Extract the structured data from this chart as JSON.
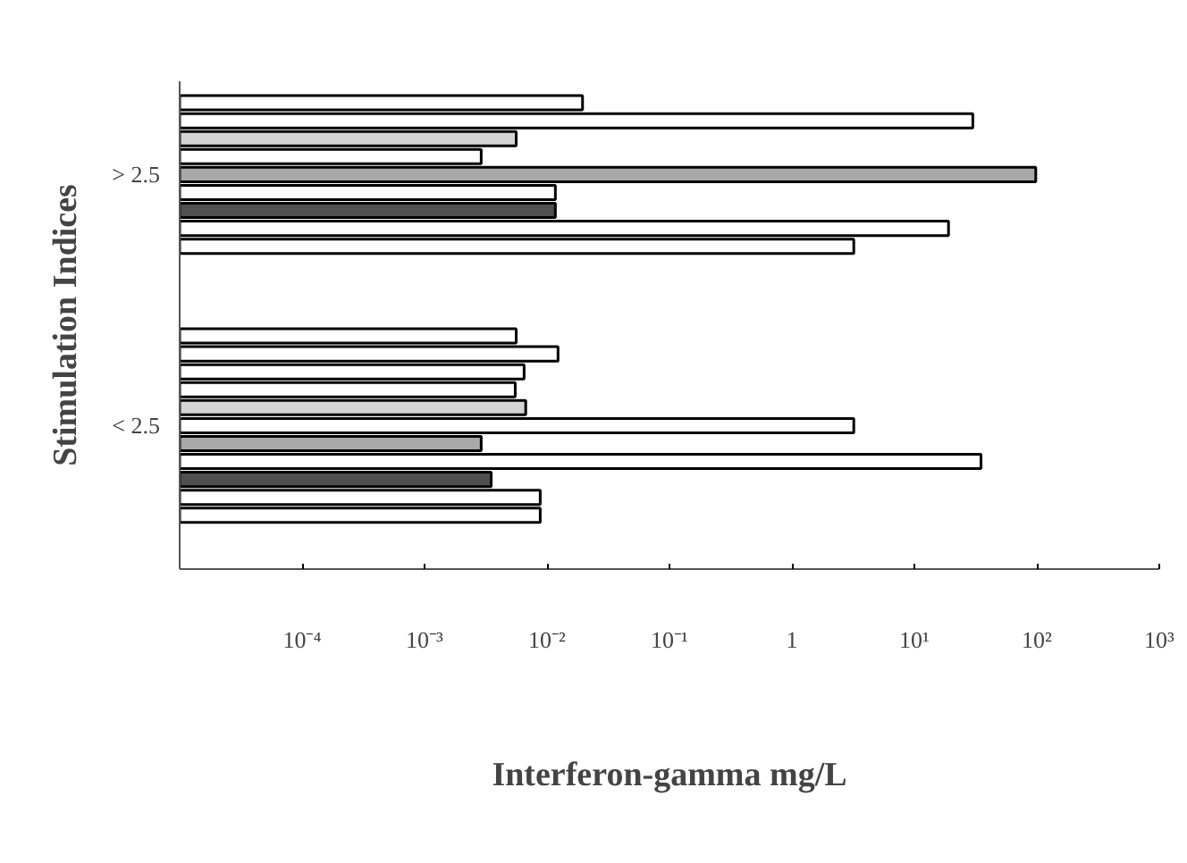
{
  "chart_data": {
    "type": "bar",
    "orientation": "horizontal",
    "log": "x",
    "xlabel": "Interferon-gamma mg/L",
    "ylabel": "Stimulation Indices",
    "categories": [
      null,
      null,
      null,
      null,
      "> 2.5",
      null,
      null,
      null,
      null,
      null,
      null,
      null,
      null,
      null,
      null,
      null,
      null,
      null,
      "< 2.5",
      null,
      null,
      null,
      null,
      null
    ],
    "values": [
      0.0195,
      30,
      0.0056,
      0.0029,
      98,
      0.0117,
      0.0117,
      19,
      3.2,
      null,
      null,
      null,
      null,
      0.0056,
      0.0123,
      0.0065,
      0.0055,
      0.0067,
      3.2,
      0.0029,
      35,
      0.0035,
      0.0088,
      0.0088
    ],
    "colors": [
      "#ffffff",
      "#ffffff",
      "#d4d4d4",
      "#ffffff",
      "#a8a8a8",
      "#ffffff",
      "#505050",
      "#ffffff",
      "#ffffff",
      null,
      null,
      null,
      null,
      "#ffffff",
      "#ffffff",
      "#ffffff",
      "#ffffff",
      "#d4d4d4",
      "#ffffff",
      "#a8a8a8",
      "#ffffff",
      "#505050",
      "#ffffff",
      "#ffffff"
    ],
    "xlim": [
      1e-05,
      1000
    ],
    "xticks": [
      {
        "value": 1e-05,
        "label": null
      },
      {
        "value": 0.0001,
        "label": "10⁻⁴"
      },
      {
        "value": 0.001,
        "label": "10⁻³"
      },
      {
        "value": 0.01,
        "label": "10⁻²"
      },
      {
        "value": 0.1,
        "label": "10⁻¹"
      },
      {
        "value": 1,
        "label": "1"
      },
      {
        "value": 10,
        "label": "10¹"
      },
      {
        "value": 100,
        "label": "10²"
      },
      {
        "value": 1000,
        "label": "10³"
      }
    ],
    "grid": false
  }
}
